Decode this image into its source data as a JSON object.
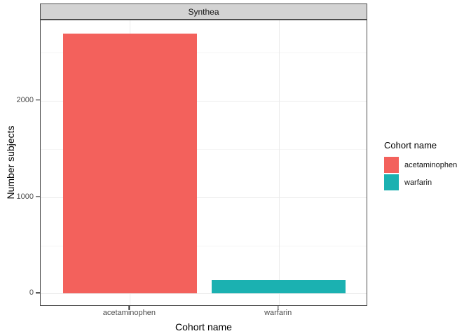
{
  "chart_data": {
    "type": "bar",
    "facet_title": "Synthea",
    "xlabel": "Cohort name",
    "ylabel": "Number subjects",
    "categories": [
      "acetaminophen",
      "warfarin"
    ],
    "values": [
      2700,
      140
    ],
    "colors": [
      "#F3615C",
      "#1BB1B1"
    ],
    "y_major_ticks": [
      0,
      1000,
      2000
    ],
    "y_minor_ticks": [
      500,
      1500,
      2500
    ],
    "ylim": [
      -135,
      2835
    ],
    "bar_width_ratio": 0.9,
    "grid": true,
    "legend": {
      "title": "Cohort name",
      "position": "right",
      "entries": [
        {
          "label": "acetaminophen",
          "color": "#F3615C"
        },
        {
          "label": "warfarin",
          "color": "#1BB1B1"
        }
      ]
    },
    "theme": {
      "strip_fill": "#D3D3D3",
      "panel_border": "#4D4D4D",
      "grid_major": "#EBEBEB",
      "grid_minor": "#F5F5F5",
      "tick_mark": "#333333",
      "tick_text": "#4D4D4D",
      "title_text": "#000000"
    }
  }
}
